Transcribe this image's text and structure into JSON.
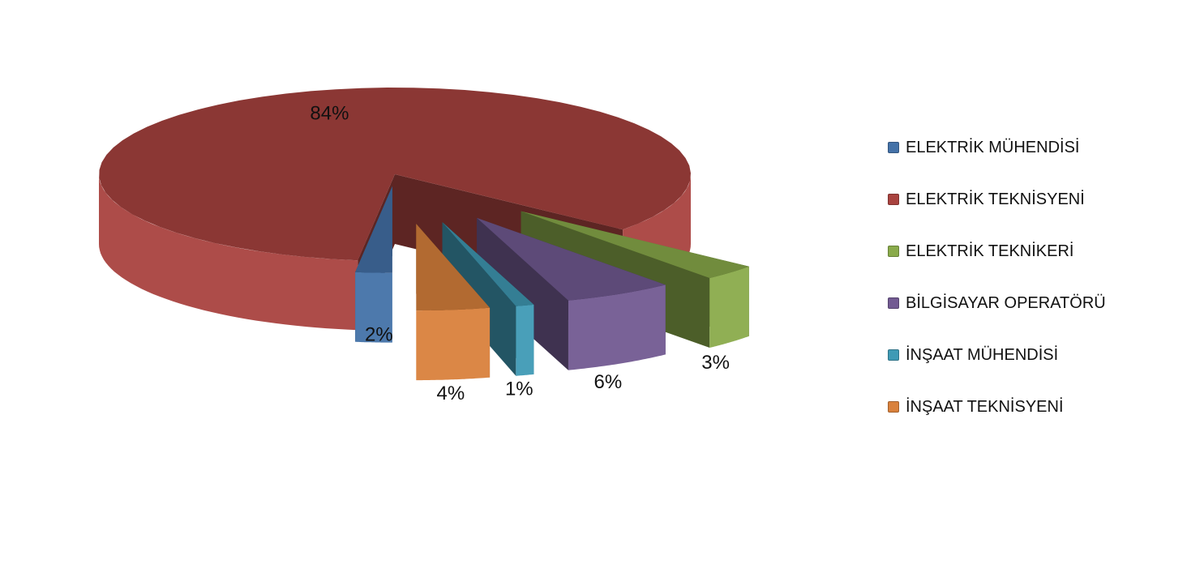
{
  "chart_data": {
    "type": "pie",
    "style": "3d-exploded",
    "categories": [
      "ELEKTRİK MÜHENDİSİ",
      "ELEKTRİK TEKNİSYENİ",
      "ELEKTRİK TEKNİKERİ",
      "BİLGİSAYAR OPERATÖRÜ",
      "İNŞAAT MÜHENDİSİ",
      "İNŞAAT TEKNİSYENİ"
    ],
    "values": [
      2,
      84,
      3,
      6,
      1,
      4
    ],
    "data_labels": [
      "2%",
      "84%",
      "3%",
      "6%",
      "1%",
      "4%"
    ],
    "colors": [
      "#4472A8",
      "#A9433F",
      "#8AAB4B",
      "#725A92",
      "#3F9AB5",
      "#D9813C"
    ],
    "legend_position": "right"
  }
}
